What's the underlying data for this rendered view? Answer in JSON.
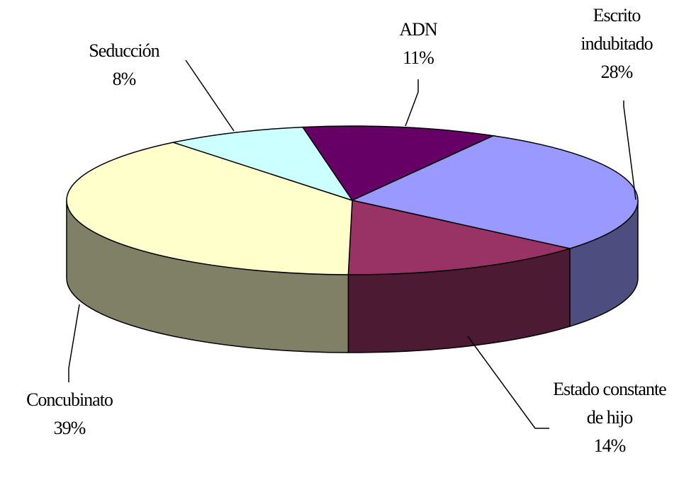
{
  "chart_data": {
    "type": "pie",
    "style": "3d",
    "categories": [
      "ADN",
      "Escrito indubitado",
      "Estado constante de hijo",
      "Concubinato",
      "Seducción"
    ],
    "values": [
      11,
      28,
      14,
      39,
      8
    ],
    "value_labels": [
      "11%",
      "28%",
      "14%",
      "39%",
      "8%"
    ],
    "colors": [
      "#660066",
      "#9999ff",
      "#993366",
      "#ffffcc",
      "#ccffff"
    ]
  }
}
